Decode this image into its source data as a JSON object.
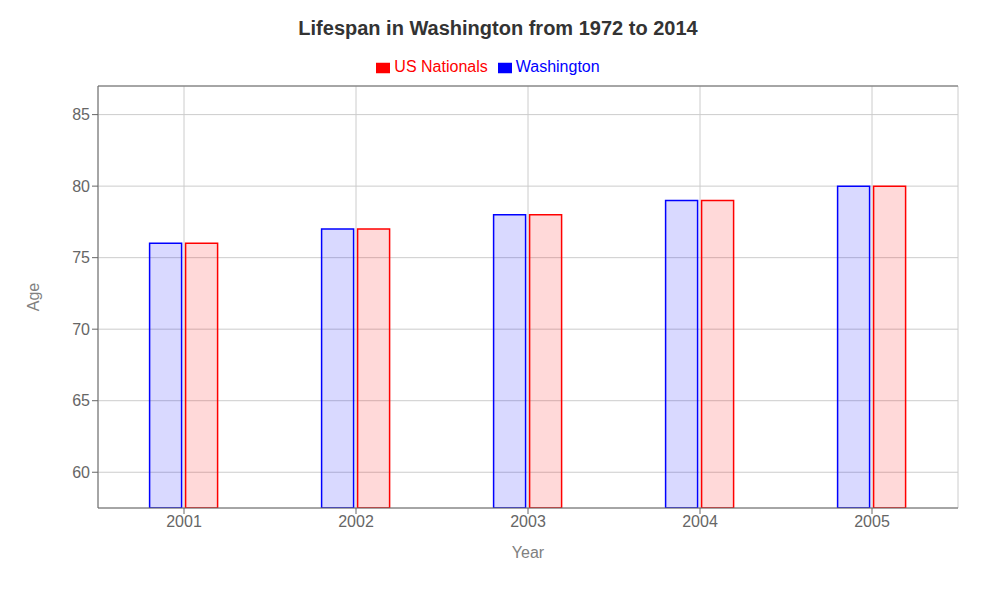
{
  "chart_data": {
    "type": "bar",
    "title": "Lifespan in Washington from 1972 to 2014",
    "xlabel": "Year",
    "ylabel": "Age",
    "categories": [
      "2001",
      "2002",
      "2003",
      "2004",
      "2005"
    ],
    "series": [
      {
        "name": "Washington",
        "color": "#0000ff",
        "values": [
          76,
          77,
          78,
          79,
          80
        ]
      },
      {
        "name": "US Nationals",
        "color": "#ff0000",
        "values": [
          76,
          77,
          78,
          79,
          80
        ]
      }
    ],
    "ylim": [
      57.5,
      87
    ],
    "yticks": [
      60,
      65,
      70,
      75,
      80,
      85
    ],
    "grid": true,
    "legend": "top"
  }
}
